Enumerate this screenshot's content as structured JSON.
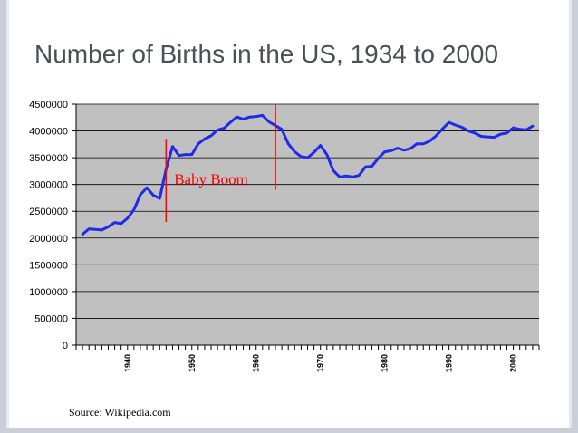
{
  "slide": {
    "title": "Number of Births in the US, 1934 to 2000",
    "source": "Source: Wikipedia.com"
  },
  "chart_data": {
    "type": "line",
    "title": "",
    "xlabel": "",
    "ylabel": "",
    "ylim": [
      0,
      4500000
    ],
    "xlim": [
      1932,
      2004
    ],
    "y_ticks": [
      0,
      500000,
      1000000,
      1500000,
      2000000,
      2500000,
      3000000,
      3500000,
      4000000,
      4500000
    ],
    "y_tick_labels": [
      "0",
      "500000",
      "1000000",
      "1500000",
      "2000000",
      "2500000",
      "3000000",
      "3500000",
      "4000000",
      "4500000"
    ],
    "x_tick_labels": [
      "1940",
      "1950",
      "1960",
      "1970",
      "1980",
      "1990",
      "2000"
    ],
    "x_tick_values": [
      1940,
      1950,
      1960,
      1970,
      1980,
      1990,
      2000
    ],
    "grid": true,
    "legend": "none",
    "plot_background": "#c0c0c0",
    "series": [
      {
        "color": "#1f2be6",
        "x": [
          1933,
          1934,
          1935,
          1936,
          1937,
          1938,
          1939,
          1940,
          1941,
          1942,
          1943,
          1944,
          1945,
          1946,
          1947,
          1948,
          1949,
          1950,
          1951,
          1952,
          1953,
          1954,
          1955,
          1956,
          1957,
          1958,
          1959,
          1960,
          1961,
          1962,
          1963,
          1964,
          1965,
          1966,
          1967,
          1968,
          1969,
          1970,
          1971,
          1972,
          1973,
          1974,
          1975,
          1976,
          1977,
          1978,
          1979,
          1980,
          1981,
          1982,
          1983,
          1984,
          1985,
          1986,
          1987,
          1988,
          1989,
          1990,
          1991,
          1992,
          1993,
          1994,
          1995,
          1996,
          1997,
          1998,
          1999,
          2000,
          2001,
          2002,
          2003
        ],
        "values": [
          2070000,
          2170000,
          2160000,
          2150000,
          2210000,
          2290000,
          2270000,
          2370000,
          2530000,
          2810000,
          2940000,
          2800000,
          2740000,
          3290000,
          3710000,
          3540000,
          3560000,
          3560000,
          3760000,
          3850000,
          3910000,
          4020000,
          4050000,
          4160000,
          4260000,
          4220000,
          4260000,
          4270000,
          4290000,
          4170000,
          4100000,
          4030000,
          3760000,
          3610000,
          3520000,
          3500000,
          3600000,
          3730000,
          3560000,
          3260000,
          3140000,
          3160000,
          3140000,
          3170000,
          3330000,
          3340000,
          3490000,
          3610000,
          3630000,
          3680000,
          3640000,
          3670000,
          3760000,
          3760000,
          3810000,
          3910000,
          4040000,
          4160000,
          4110000,
          4070000,
          4000000,
          3960000,
          3900000,
          3890000,
          3880000,
          3940000,
          3960000,
          4060000,
          4030000,
          4020000,
          4090000
        ]
      }
    ],
    "annotations": [
      {
        "text": "Baby Boom",
        "x": 1953,
        "y": 3000000,
        "color": "#ff0000"
      }
    ],
    "marker_lines": [
      {
        "x": 1946,
        "y_from": 2300000,
        "y_to": 3850000,
        "color": "#ff0000"
      },
      {
        "x": 1963,
        "y_from": 2900000,
        "y_to": 4500000,
        "color": "#ff0000"
      }
    ]
  }
}
